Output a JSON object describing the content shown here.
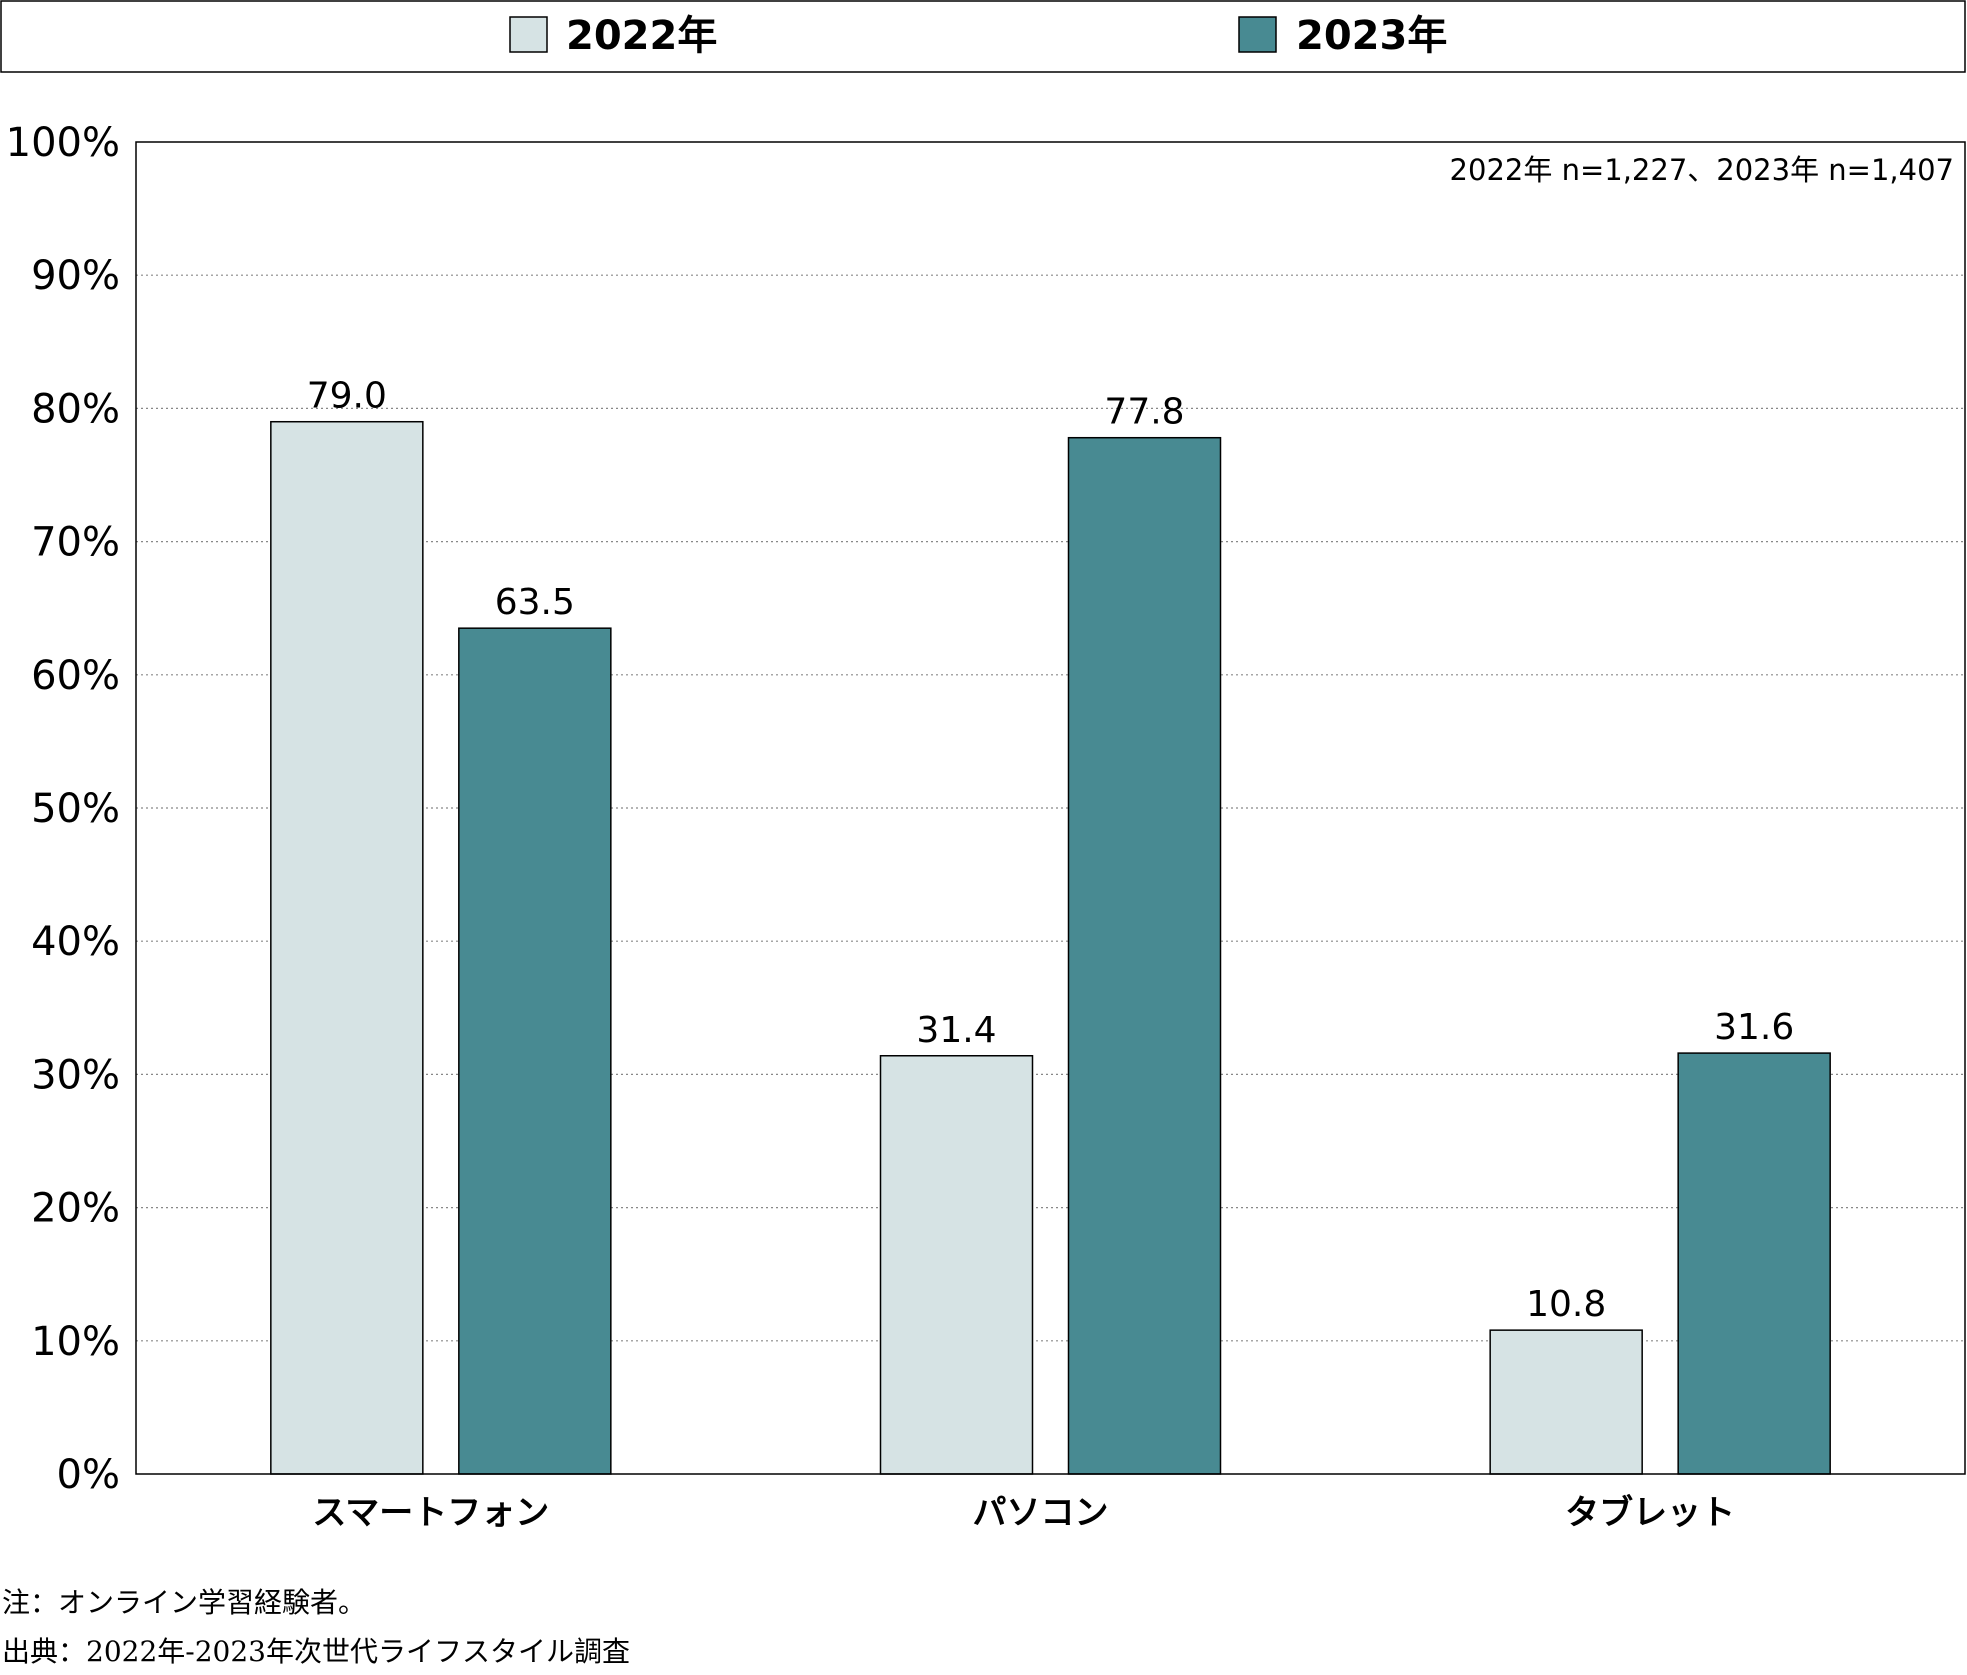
{
  "chart_data": {
    "type": "bar",
    "categories": [
      "スマートフォン",
      "パソコン",
      "タブレット"
    ],
    "series": [
      {
        "name": "2022年",
        "values": [
          79.0,
          31.4,
          10.8
        ],
        "color": "#d6e3e4"
      },
      {
        "name": "2023年",
        "values": [
          63.5,
          77.8,
          31.6
        ],
        "color": "#488a92"
      }
    ],
    "y_ticks": [
      "0%",
      "10%",
      "20%",
      "30%",
      "40%",
      "50%",
      "60%",
      "70%",
      "80%",
      "90%",
      "100%"
    ],
    "ylim": [
      0,
      100
    ],
    "grid": "dotted horizontal",
    "legend_position": "top",
    "value_labels": [
      [
        "79.0",
        "31.4",
        "10.8"
      ],
      [
        "63.5",
        "77.8",
        "31.6"
      ]
    ],
    "sample_note": "2022年 n=1,227、2023年 n=1,407"
  },
  "footnotes": {
    "note": "注：オンライン学習経験者。",
    "source": "出典：2022年-2023年次世代ライフスタイル調査"
  }
}
